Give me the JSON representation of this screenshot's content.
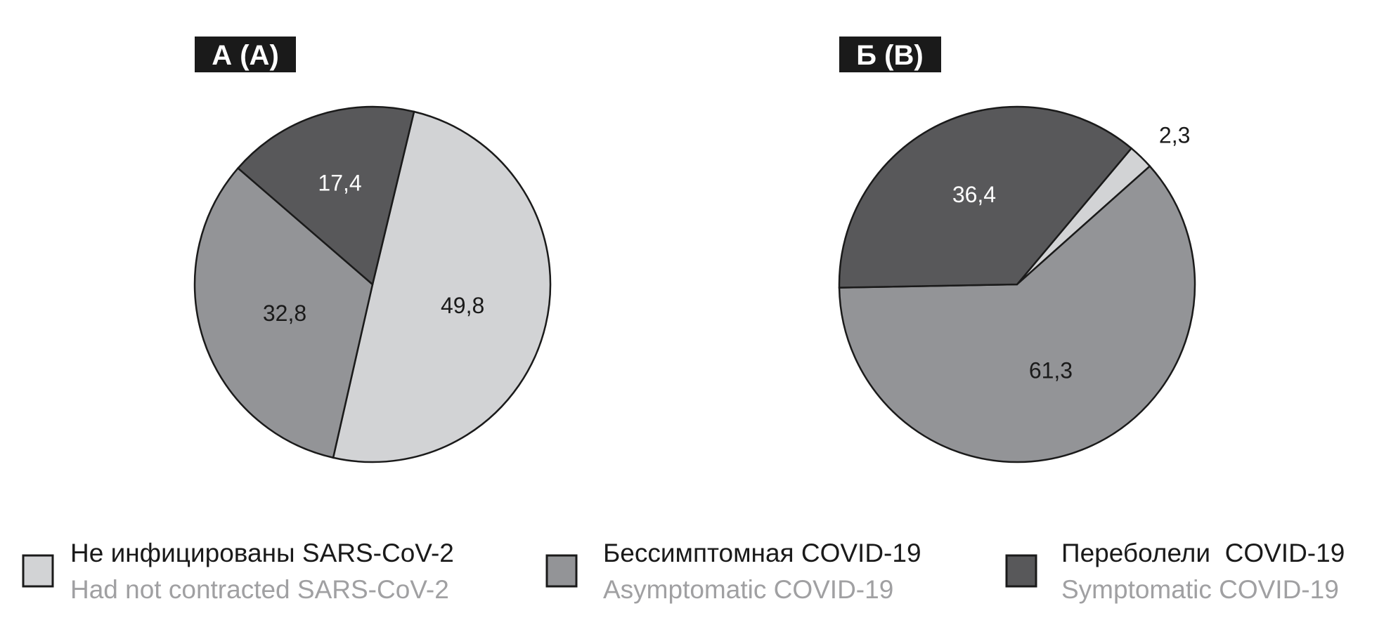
{
  "colors": {
    "not_infected": "#d2d3d5",
    "asymptomatic": "#939497",
    "symptomatic": "#58585a",
    "outline": "#1a1a1a",
    "legend_en_text": "#a0a0a2"
  },
  "chart_data": [
    {
      "type": "pie",
      "title": "А (A)",
      "slices": [
        {
          "category": "not_infected",
          "value": 49.8,
          "label": "49,8"
        },
        {
          "category": "asymptomatic",
          "value": 32.8,
          "label": "32,8"
        },
        {
          "category": "symptomatic",
          "value": 17.4,
          "label": "17,4"
        }
      ]
    },
    {
      "type": "pie",
      "title": "Б (B)",
      "slices": [
        {
          "category": "not_infected",
          "value": 2.3,
          "label": "2,3"
        },
        {
          "category": "asymptomatic",
          "value": 61.3,
          "label": "61,3"
        },
        {
          "category": "symptomatic",
          "value": 36.4,
          "label": "36,4"
        }
      ]
    }
  ],
  "legend": [
    {
      "category": "not_infected",
      "label_ru": "Не инфицированы SARS-CoV-2",
      "label_en": "Had not contracted SARS-CoV-2"
    },
    {
      "category": "asymptomatic",
      "label_ru": "Бессимптомная COVID-19",
      "label_en": "Asymptomatic COVID-19"
    },
    {
      "category": "symptomatic",
      "label_ru": "Переболели  COVID-19",
      "label_en": "Symptomatic COVID-19"
    }
  ]
}
